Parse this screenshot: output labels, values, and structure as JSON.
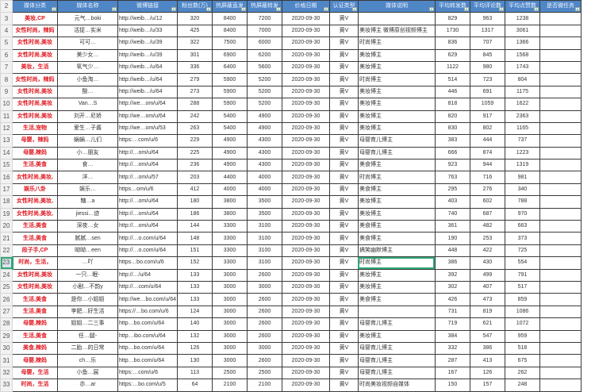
{
  "header": {
    "row_number": "2",
    "columns": [
      "媒体分类",
      "媒体名称",
      "微博链接",
      "粉丝数(万)",
      "热屏蔽直发",
      "热屏蔽转发",
      "价格日期",
      "认证类型",
      "媒体说明",
      "平均转发数",
      "平均评论数",
      "平均点赞数",
      "是否微任务"
    ]
  },
  "selected_row": "23",
  "colors": {
    "header_bg": "#4f86c6",
    "category_text": "#e0161e",
    "selection": "#2fa878"
  },
  "rows": [
    {
      "n": "3",
      "cat": "美妆,CP",
      "name": "元气…boki",
      "url": "http://weib…/u/12",
      "fans": "320",
      "zf": "8400",
      "zz": "7200",
      "date": "2020-09-30",
      "auth": "黄V",
      "desc": "",
      "fwd": "829",
      "cmt": "963",
      "like": "1238"
    },
    {
      "n": "4",
      "cat": "女性时尚，辣妈",
      "name": "活捉…实米",
      "url": "http://weib…/u/33",
      "fans": "425",
      "zf": "8400",
      "zz": "7000",
      "date": "2020-09-30",
      "auth": "黄V",
      "desc": "美妆博主 微博原创视频博主",
      "fwd": "1730",
      "cmt": "1317",
      "like": "3061"
    },
    {
      "n": "5",
      "cat": "女性时尚,美妆",
      "name": "可可…",
      "url": "http://weib…/u/39",
      "fans": "322",
      "zf": "7500",
      "zz": "6000",
      "date": "2020-09-30",
      "auth": "黄V",
      "desc": "时尚博主",
      "fwd": "836",
      "cmt": "707",
      "like": "1366"
    },
    {
      "n": "6",
      "cat": "女性时尚,美妆",
      "name": "美少女…",
      "url": "http://weib…/u/39",
      "fans": "301",
      "zf": "6900",
      "zz": "6200",
      "date": "2020-09-30",
      "auth": "黄V",
      "desc": "美妆博主",
      "fwd": "629",
      "cmt": "845",
      "like": "1568"
    },
    {
      "n": "7",
      "cat": "美妆，生活",
      "name": "氧气少…",
      "url": "http://weib…/u/64",
      "fans": "336",
      "zf": "6400",
      "zz": "5600",
      "date": "2020-09-30",
      "auth": "黄V",
      "desc": "美妆博主",
      "fwd": "1122",
      "cmt": "980",
      "like": "1743"
    },
    {
      "n": "8",
      "cat": "女性时尚，辣妈",
      "name": "小鱼淘…",
      "url": "http://weib…/u/64",
      "fans": "279",
      "zf": "5900",
      "zz": "5200",
      "date": "2020-09-30",
      "auth": "黄V",
      "desc": "时尚博主",
      "fwd": "514",
      "cmt": "723",
      "like": "804"
    },
    {
      "n": "9",
      "cat": "女性时尚,美妆",
      "name": "酸…",
      "url": "http://weib…/u/64",
      "fans": "273",
      "zf": "5900",
      "zz": "5200",
      "date": "2020-09-30",
      "auth": "黄V",
      "desc": "美妆博主",
      "fwd": "446",
      "cmt": "691",
      "like": "1175"
    },
    {
      "n": "10",
      "cat": "女性时尚,美妆",
      "name": "Van…S",
      "url": "http://we…om/u/64",
      "fans": "288",
      "zf": "5900",
      "zz": "5200",
      "date": "2020-09-30",
      "auth": "黄V",
      "desc": "美妆博主",
      "fwd": "818",
      "cmt": "1059",
      "like": "1622"
    },
    {
      "n": "11",
      "cat": "女性时尚,美妆",
      "name": "刘开…尼娇",
      "url": "http://we…om/u/64",
      "fans": "242",
      "zf": "5400",
      "zz": "4900",
      "date": "2020-09-30",
      "auth": "黄V",
      "desc": "美妆博主",
      "fwd": "820",
      "cmt": "917",
      "like": "2363"
    },
    {
      "n": "12",
      "cat": "生活,宠物",
      "name": "爱生…子酱",
      "url": "http://we…om/u/53",
      "fans": "263",
      "zf": "5400",
      "zz": "4900",
      "date": "2020-09-30",
      "auth": "黄V",
      "desc": "美妆博主",
      "fwd": "830",
      "cmt": "802",
      "like": "1165"
    },
    {
      "n": "13",
      "cat": "母婴，辣妈",
      "name": "蜗蜗…儿们",
      "url": "https:…com/u/6",
      "fans": "229",
      "zf": "4900",
      "zz": "4300",
      "date": "2020-09-30",
      "auth": "黄V",
      "desc": "母婴育儿博主",
      "fwd": "383",
      "cmt": "444",
      "like": "737"
    },
    {
      "n": "14",
      "cat": "母婴,辣妈",
      "name": "小…朋友",
      "url": "http://…om/u/64",
      "fans": "225",
      "zf": "4900",
      "zz": "4300",
      "date": "2020-09-30",
      "auth": "黄V",
      "desc": "母婴育儿博主",
      "fwd": "666",
      "cmt": "874",
      "like": "1223"
    },
    {
      "n": "15",
      "cat": "生活,美食",
      "name": "食…",
      "url": "http://…om/u/64",
      "fans": "236",
      "zf": "4900",
      "zz": "4300",
      "date": "2020-09-30",
      "auth": "黄V",
      "desc": "美食博主",
      "fwd": "923",
      "cmt": "944",
      "like": "1319"
    },
    {
      "n": "16",
      "cat": "女性时尚,美妆,",
      "name": "洋…",
      "url": "http://…om/u/57",
      "fans": "203",
      "zf": "4400",
      "zz": "4000",
      "date": "2020-09-30",
      "auth": "黄V",
      "desc": "时尚博主",
      "fwd": "763",
      "cmt": "716",
      "like": "981"
    },
    {
      "n": "17",
      "cat": "娱乐八卦",
      "name": "娱乐…",
      "url": "https…om/u/6",
      "fans": "412",
      "zf": "4000",
      "zz": "4000",
      "date": "2020-09-30",
      "auth": "黄V",
      "desc": "美食博主",
      "fwd": "295",
      "cmt": "276",
      "like": "340"
    },
    {
      "n": "18",
      "cat": "女性时尚,美妆,",
      "name": "糖…a",
      "url": "http://…om/u/64",
      "fans": "180",
      "zf": "3800",
      "zz": "3500",
      "date": "2020-09-30",
      "auth": "黄V",
      "desc": "美妆博主",
      "fwd": "403",
      "cmt": "602",
      "like": "788"
    },
    {
      "n": "19",
      "cat": "女性时尚,美妆,",
      "name": "jiessi…迹",
      "url": "http://…om/u/64",
      "fans": "186",
      "zf": "3800",
      "zz": "3500",
      "date": "2020-09-30",
      "auth": "黄V",
      "desc": "美妆博主",
      "fwd": "740",
      "cmt": "687",
      "like": "970"
    },
    {
      "n": "20",
      "cat": "生活,美食",
      "name": "深夜…女",
      "url": "http://…om/u/64",
      "fans": "144",
      "zf": "3300",
      "zz": "3100",
      "date": "2020-09-30",
      "auth": "黄V",
      "desc": "美食博主",
      "fwd": "361",
      "cmt": "482",
      "like": "663"
    },
    {
      "n": "21",
      "cat": "生活,美食",
      "name": "腻腻…sen",
      "url": "http://…o.com/u/64",
      "fans": "148",
      "zf": "3300",
      "zz": "3100",
      "date": "2020-09-30",
      "auth": "黄V",
      "desc": "美食博主",
      "fwd": "190",
      "cmt": "253",
      "like": "373"
    },
    {
      "n": "22",
      "cat": "段子手,CP",
      "name": "呦呦…een",
      "url": "http://…o.com/u/64",
      "fans": "151",
      "zf": "3300",
      "zz": "3100",
      "date": "2020-09-30",
      "auth": "黄V",
      "desc": "搞笑幽默博主",
      "fwd": "448",
      "cmt": "422",
      "like": "725"
    },
    {
      "n": "23",
      "cat": "时尚，生活，",
      "name": "…吖",
      "url": "https…bo.com/u/6",
      "fans": "152",
      "zf": "3300",
      "zz": "3100",
      "date": "2020-09-30",
      "auth": "黄V",
      "desc": "时尚博主",
      "fwd": "386",
      "cmt": "430",
      "like": "554"
    },
    {
      "n": "24",
      "cat": "女性时尚,美妆",
      "name": "一只…眠-",
      "url": "http://…/u/64",
      "fans": "133",
      "zf": "3000",
      "zz": "2600",
      "date": "2020-09-30",
      "auth": "黄V",
      "desc": "美妆博主",
      "fwd": "392",
      "cmt": "499",
      "like": "791"
    },
    {
      "n": "25",
      "cat": "女性时尚,美妆",
      "name": "小剧…不韵y",
      "url": "http://…com/u/64",
      "fans": "133",
      "zf": "3000",
      "zz": "3000",
      "date": "2020-09-30",
      "auth": "黄V",
      "desc": "美妆博主",
      "fwd": "302",
      "cmt": "407",
      "like": "517"
    },
    {
      "n": "26",
      "cat": "生活,美食",
      "name": "是你…小姐姐",
      "url": "http://we…bo.com/u/64",
      "fans": "133",
      "zf": "3000",
      "zz": "2600",
      "date": "2020-09-30",
      "auth": "黄V",
      "desc": "美食博主",
      "fwd": "426",
      "cmt": "473",
      "like": "859"
    },
    {
      "n": "27",
      "cat": "生活,美食",
      "name": "李肥…好生活",
      "url": "https://…bo.com/u/6",
      "fans": "124",
      "zf": "3000",
      "zz": "2600",
      "date": "2020-09-30",
      "auth": "黄V",
      "desc": "",
      "fwd": "731",
      "cmt": "819",
      "like": "1086"
    },
    {
      "n": "28",
      "cat": "母婴,辣妈",
      "name": "姐姐…二三事",
      "url": "http…bo.com/u/64",
      "fans": "140",
      "zf": "3000",
      "zz": "2600",
      "date": "2020-09-30",
      "auth": "黄V",
      "desc": "母婴育儿博主",
      "fwd": "719",
      "cmt": "621",
      "like": "1072"
    },
    {
      "n": "29",
      "cat": "生活,美食",
      "name": "任…腿-",
      "url": "http…ibo.com/u/64",
      "fans": "132",
      "zf": "3000",
      "zz": "2600",
      "date": "2020-09-30",
      "auth": "黄V",
      "desc": "美妆博主",
      "fwd": "384",
      "cmt": "547",
      "like": "959"
    },
    {
      "n": "30",
      "cat": "美食,辣妈",
      "name": "二胎…的日常",
      "url": "http…bo.com/u/64",
      "fans": "126",
      "zf": "3000",
      "zz": "3000",
      "date": "2020-09-30",
      "auth": "黄V",
      "desc": "母婴育儿博主",
      "fwd": "332",
      "cmt": "386",
      "like": "518"
    },
    {
      "n": "31",
      "cat": "母婴,辣妈",
      "name": "ch…乐",
      "url": "http…bo.com/u/64",
      "fans": "130",
      "zf": "3000",
      "zz": "2600",
      "date": "2020-09-30",
      "auth": "黄V",
      "desc": "母婴育儿博主",
      "fwd": "287",
      "cmt": "413",
      "like": "675"
    },
    {
      "n": "32",
      "cat": "母婴，生活",
      "name": "小鱼…宸",
      "url": "https:…com/u/6",
      "fans": "113",
      "zf": "2500",
      "zz": "2500",
      "date": "2020-09-30",
      "auth": "黄V",
      "desc": "母婴育儿博主",
      "fwd": "167",
      "cmt": "126",
      "like": "262"
    },
    {
      "n": "33",
      "cat": "时尚，生活",
      "name": "亦…ar",
      "url": "https:…bo.com/u/5",
      "fans": "64",
      "zf": "2100",
      "zz": "2100",
      "date": "2020-09-30",
      "auth": "黄V",
      "desc": "时尚美妆视频自媒体",
      "fwd": "150",
      "cmt": "157",
      "like": "248"
    }
  ]
}
